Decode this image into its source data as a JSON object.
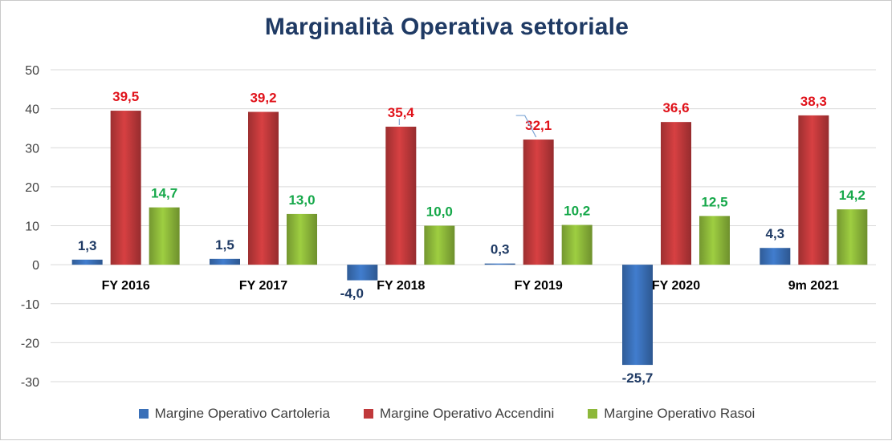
{
  "chart_data": {
    "type": "bar",
    "title": "Marginalità Operativa settoriale",
    "categories": [
      "FY 2016",
      "FY 2017",
      "FY 2018",
      "FY 2019",
      "FY 2020",
      "9m 2021"
    ],
    "series": [
      {
        "name": "Margine Operativo Cartoleria",
        "values": [
          1.3,
          1.5,
          -4.0,
          0.3,
          -25.7,
          4.3
        ],
        "labels": [
          "1,3",
          "1,5",
          "-4,0",
          "0,3",
          "-25,7",
          "4,3"
        ],
        "color": "#3a70b8",
        "label_color": "#1f3a64"
      },
      {
        "name": "Margine Operativo Accendini",
        "values": [
          39.5,
          39.2,
          35.4,
          32.1,
          36.6,
          38.3
        ],
        "labels": [
          "39,5",
          "39,2",
          "35,4",
          "32,1",
          "36,6",
          "38,3"
        ],
        "color": "#c0393b",
        "label_color": "#e0121a"
      },
      {
        "name": "Margine Operativo Rasoi",
        "values": [
          14.7,
          13.0,
          10.0,
          10.2,
          12.5,
          14.2
        ],
        "labels": [
          "14,7",
          "13,0",
          "10,0",
          "10,2",
          "12,5",
          "14,2"
        ],
        "color": "#8db83a",
        "label_color": "#16a84a"
      }
    ],
    "ylim": [
      -30,
      50
    ],
    "yticks": [
      50,
      40,
      30,
      20,
      10,
      0,
      -10,
      -20,
      -30
    ],
    "grid": true,
    "legend": "bottom",
    "xlabel": "",
    "ylabel": ""
  }
}
